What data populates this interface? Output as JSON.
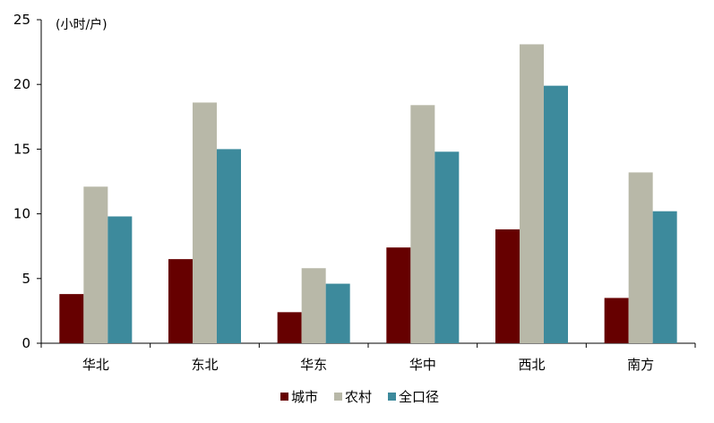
{
  "chart_data": {
    "type": "bar",
    "unit_label": "(小时/户)",
    "categories": [
      "华北",
      "东北",
      "华东",
      "华中",
      "西北",
      "南方"
    ],
    "series": [
      {
        "name": "城市",
        "values": [
          3.8,
          6.5,
          2.4,
          7.4,
          8.8,
          3.5
        ],
        "color": "#660000"
      },
      {
        "name": "农村",
        "values": [
          12.1,
          18.6,
          5.8,
          18.4,
          23.1,
          13.2
        ],
        "color": "#b8b8a8"
      },
      {
        "name": "全口径",
        "values": [
          9.8,
          15.0,
          4.6,
          14.8,
          19.9,
          10.2
        ],
        "color": "#3d8a9c"
      }
    ],
    "ylim": [
      0,
      25
    ],
    "yticks": [
      0,
      5,
      10,
      15,
      20,
      25
    ],
    "grid": false,
    "legend_position": "bottom-center"
  }
}
